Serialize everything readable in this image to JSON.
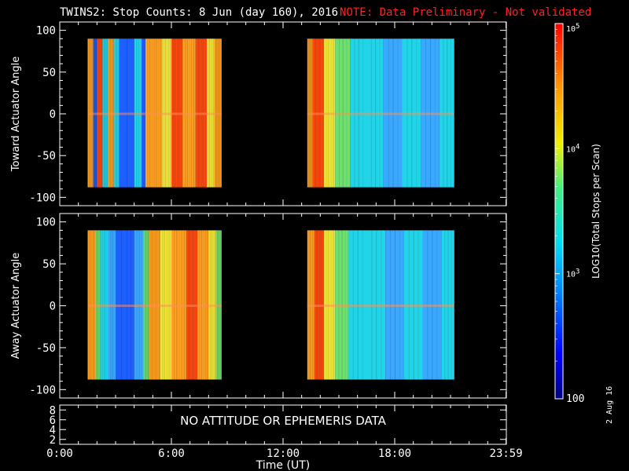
{
  "chart_data": [
    {
      "type": "heatmap",
      "panel": "toward",
      "ylabel": "Toward Actuator Angle",
      "ylim": [
        -110,
        110
      ],
      "yticks": [
        100,
        50,
        0,
        -50,
        -100
      ],
      "xlim": [
        0,
        24
      ],
      "data_x_ranges": [
        [
          1.5,
          8.7
        ],
        [
          13.3,
          21.2
        ]
      ],
      "data_y_range": [
        -88,
        90
      ],
      "bands": [
        [
          1.5,
          3,
          "orange"
        ],
        [
          1.8,
          3,
          "blue"
        ],
        [
          2.0,
          3,
          "red"
        ],
        [
          2.3,
          3,
          "cyan"
        ],
        [
          2.6,
          3,
          "orange"
        ],
        [
          2.9,
          2,
          "cyan"
        ],
        [
          3.2,
          1,
          "blue"
        ],
        [
          4.0,
          2,
          "cyan"
        ],
        [
          4.4,
          1,
          "blue"
        ],
        [
          4.6,
          4,
          "orange"
        ],
        [
          5.5,
          3,
          "yellow"
        ],
        [
          6.0,
          4,
          "red"
        ],
        [
          6.6,
          3,
          "orange"
        ],
        [
          7.3,
          4,
          "red"
        ],
        [
          7.9,
          3,
          "yellow"
        ],
        [
          8.3,
          4,
          "orange"
        ],
        [
          13.3,
          4,
          "orange"
        ],
        [
          13.6,
          4,
          "red"
        ],
        [
          14.2,
          3,
          "yellow"
        ],
        [
          14.8,
          2,
          "green"
        ],
        [
          15.6,
          2,
          "cyan"
        ],
        [
          16.5,
          2,
          "cyan"
        ],
        [
          17.4,
          2,
          "lightblue"
        ],
        [
          18.4,
          2,
          "cyan"
        ],
        [
          19.4,
          2,
          "lightblue"
        ],
        [
          20.4,
          2,
          "cyan"
        ]
      ]
    },
    {
      "type": "heatmap",
      "panel": "away",
      "ylabel": "Away Actuator Angle",
      "ylim": [
        -110,
        110
      ],
      "yticks": [
        100,
        50,
        0,
        -50,
        -100
      ],
      "xlim": [
        0,
        24
      ],
      "data_x_ranges": [
        [
          1.5,
          8.7
        ],
        [
          13.3,
          21.2
        ]
      ],
      "data_y_range": [
        -88,
        90
      ],
      "bands": [
        [
          1.5,
          3,
          "orange"
        ],
        [
          1.9,
          3,
          "green"
        ],
        [
          2.2,
          2,
          "cyan"
        ],
        [
          2.6,
          2,
          "lightblue"
        ],
        [
          3.0,
          1,
          "blue"
        ],
        [
          3.6,
          1,
          "blue"
        ],
        [
          4.0,
          2,
          "lightblue"
        ],
        [
          4.5,
          3,
          "green"
        ],
        [
          4.8,
          4,
          "orange"
        ],
        [
          5.4,
          3,
          "yellow"
        ],
        [
          6.0,
          3,
          "orange"
        ],
        [
          6.8,
          4,
          "red"
        ],
        [
          7.4,
          3,
          "orange"
        ],
        [
          8.0,
          3,
          "yellow"
        ],
        [
          8.4,
          3,
          "green"
        ],
        [
          13.3,
          3,
          "orange"
        ],
        [
          13.7,
          4,
          "red"
        ],
        [
          14.2,
          3,
          "yellow"
        ],
        [
          14.8,
          2,
          "green"
        ],
        [
          15.5,
          2,
          "cyan"
        ],
        [
          16.5,
          2,
          "cyan"
        ],
        [
          17.5,
          2,
          "lightblue"
        ],
        [
          18.5,
          2,
          "cyan"
        ],
        [
          19.5,
          2,
          "lightblue"
        ],
        [
          20.5,
          2,
          "cyan"
        ]
      ]
    },
    {
      "type": "line",
      "panel": "attitude",
      "ylim": [
        1,
        9
      ],
      "yticks": [
        8,
        6,
        4,
        2
      ],
      "annotation": "NO ATTITUDE OR EPHEMERIS DATA"
    }
  ],
  "x_axis": {
    "label": "Time (UT)",
    "ticks": [
      {
        "value": 0,
        "label": "0:00"
      },
      {
        "value": 6,
        "label": "6:00"
      },
      {
        "value": 12,
        "label": "12:00"
      },
      {
        "value": 18,
        "label": "18:00"
      },
      {
        "value": 23.983,
        "label": "23:59"
      }
    ]
  },
  "colorbar": {
    "label": "LOG10(Total Stops per Scan)",
    "range": [
      100,
      100000
    ],
    "tick_labels": [
      "10^5",
      "10^4",
      "10^3",
      "100"
    ],
    "tick_values": [
      100000,
      10000,
      1000,
      100
    ]
  },
  "title": {
    "main": "TWINS2: Stop Counts:  8 Jun (day 160), 2016",
    "note": "NOTE: Data Preliminary - Not validated",
    "note_color": "#ff2020"
  },
  "date_stamp": "2 Aug 16",
  "palette": {
    "blue": "#1e5fff",
    "lightblue": "#3aa8ff",
    "cyan": "#22d4e8",
    "green": "#6ee070",
    "yellow": "#f2e838",
    "orange": "#ffa020",
    "red": "#ff4a10"
  }
}
